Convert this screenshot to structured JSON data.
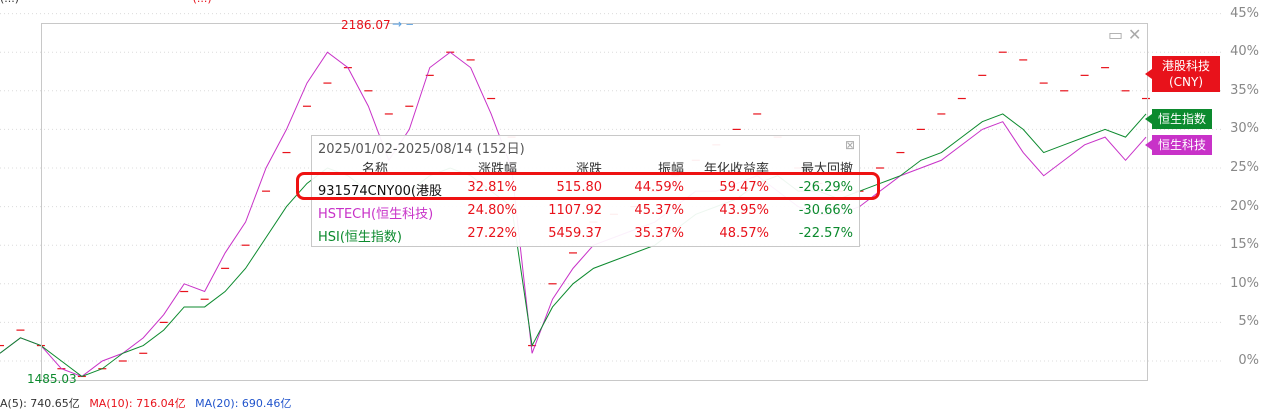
{
  "top_bar": {
    "text_a": "(...)",
    "text_b": "(...)"
  },
  "axis": {
    "ticks": [
      "45%",
      "40%",
      "35%",
      "30%",
      "25%",
      "20%",
      "15%",
      "10%",
      "5%",
      "0%"
    ]
  },
  "markers": {
    "max_value": "2186.07",
    "max_arrow": "→ ‒",
    "min_value": "1485.03"
  },
  "series_tags": {
    "hk_tech_cny": "港股科技\n(CNY)",
    "hsi": "恒生指数",
    "hstech": "恒生科技"
  },
  "window_controls": {
    "restore_glyph": "▭",
    "close_glyph": "✕"
  },
  "stats_panel": {
    "title": "2025/01/02-2025/08/14 (152日)",
    "close_glyph": "⊠",
    "headers": [
      "名称",
      "涨跌幅",
      "涨跌",
      "振幅",
      "年化收益率",
      "最大回撤"
    ],
    "rows": [
      {
        "name": "931574CNY00(港股",
        "chg_pct": "32.81%",
        "chg": "515.80",
        "amp": "44.59%",
        "annual": "59.47%",
        "drawdown": "-26.29%"
      },
      {
        "name": "HSTECH(恒生科技)",
        "chg_pct": "24.80%",
        "chg": "1107.92",
        "amp": "45.37%",
        "annual": "43.95%",
        "drawdown": "-30.66%"
      },
      {
        "name": "HSI(恒生指数)",
        "chg_pct": "27.22%",
        "chg": "5459.37",
        "amp": "35.37%",
        "annual": "48.57%",
        "drawdown": "-22.57%"
      }
    ]
  },
  "bottom_bar": {
    "vol": "A(5): 740.65亿",
    "ma10": "MA(10): 716.04亿",
    "ma20": "MA(20): 690.46亿"
  },
  "colors": {
    "red": "#e8121b",
    "green": "#0c8a2e",
    "purple": "#c832c8",
    "highlight": "#ee1111"
  },
  "chart_data": {
    "type": "line",
    "ylim": [
      -3,
      45
    ],
    "series": [
      {
        "values": [
          2,
          4,
          2,
          -1,
          -2,
          -1,
          0,
          1,
          5,
          9,
          8,
          12,
          15,
          22,
          27,
          33,
          36,
          38,
          35,
          32,
          33,
          37,
          40,
          39,
          34,
          29,
          2,
          10,
          14,
          18,
          19,
          20,
          22,
          24,
          26,
          28,
          30,
          32,
          29,
          25,
          23,
          22,
          22,
          25,
          27,
          30,
          32,
          34,
          37,
          40,
          39,
          36,
          35,
          37,
          38,
          35,
          34
        ]
      },
      {
        "values": [
          1,
          3,
          2,
          -1,
          -2,
          0,
          1,
          3,
          6,
          10,
          9,
          14,
          18,
          25,
          30,
          36,
          40,
          38,
          33,
          26,
          30,
          38,
          40,
          38,
          32,
          25,
          1,
          8,
          12,
          15,
          16,
          17,
          18,
          20,
          22,
          22,
          23,
          24,
          22,
          20,
          19,
          19,
          20,
          22,
          24,
          25,
          26,
          28,
          30,
          31,
          27,
          24,
          26,
          28,
          29,
          26,
          29
        ]
      },
      {
        "values": [
          1,
          3,
          2,
          0,
          -2,
          -1,
          1,
          2,
          4,
          7,
          7,
          9,
          12,
          16,
          20,
          23,
          25,
          24,
          22,
          21,
          22,
          24,
          25,
          24,
          22,
          20,
          2,
          7,
          10,
          12,
          13,
          14,
          15,
          17,
          19,
          20,
          21,
          23,
          24,
          22,
          22,
          21,
          22,
          23,
          24,
          26,
          27,
          29,
          31,
          32,
          30,
          27,
          28,
          29,
          30,
          29,
          32
        ]
      }
    ]
  }
}
